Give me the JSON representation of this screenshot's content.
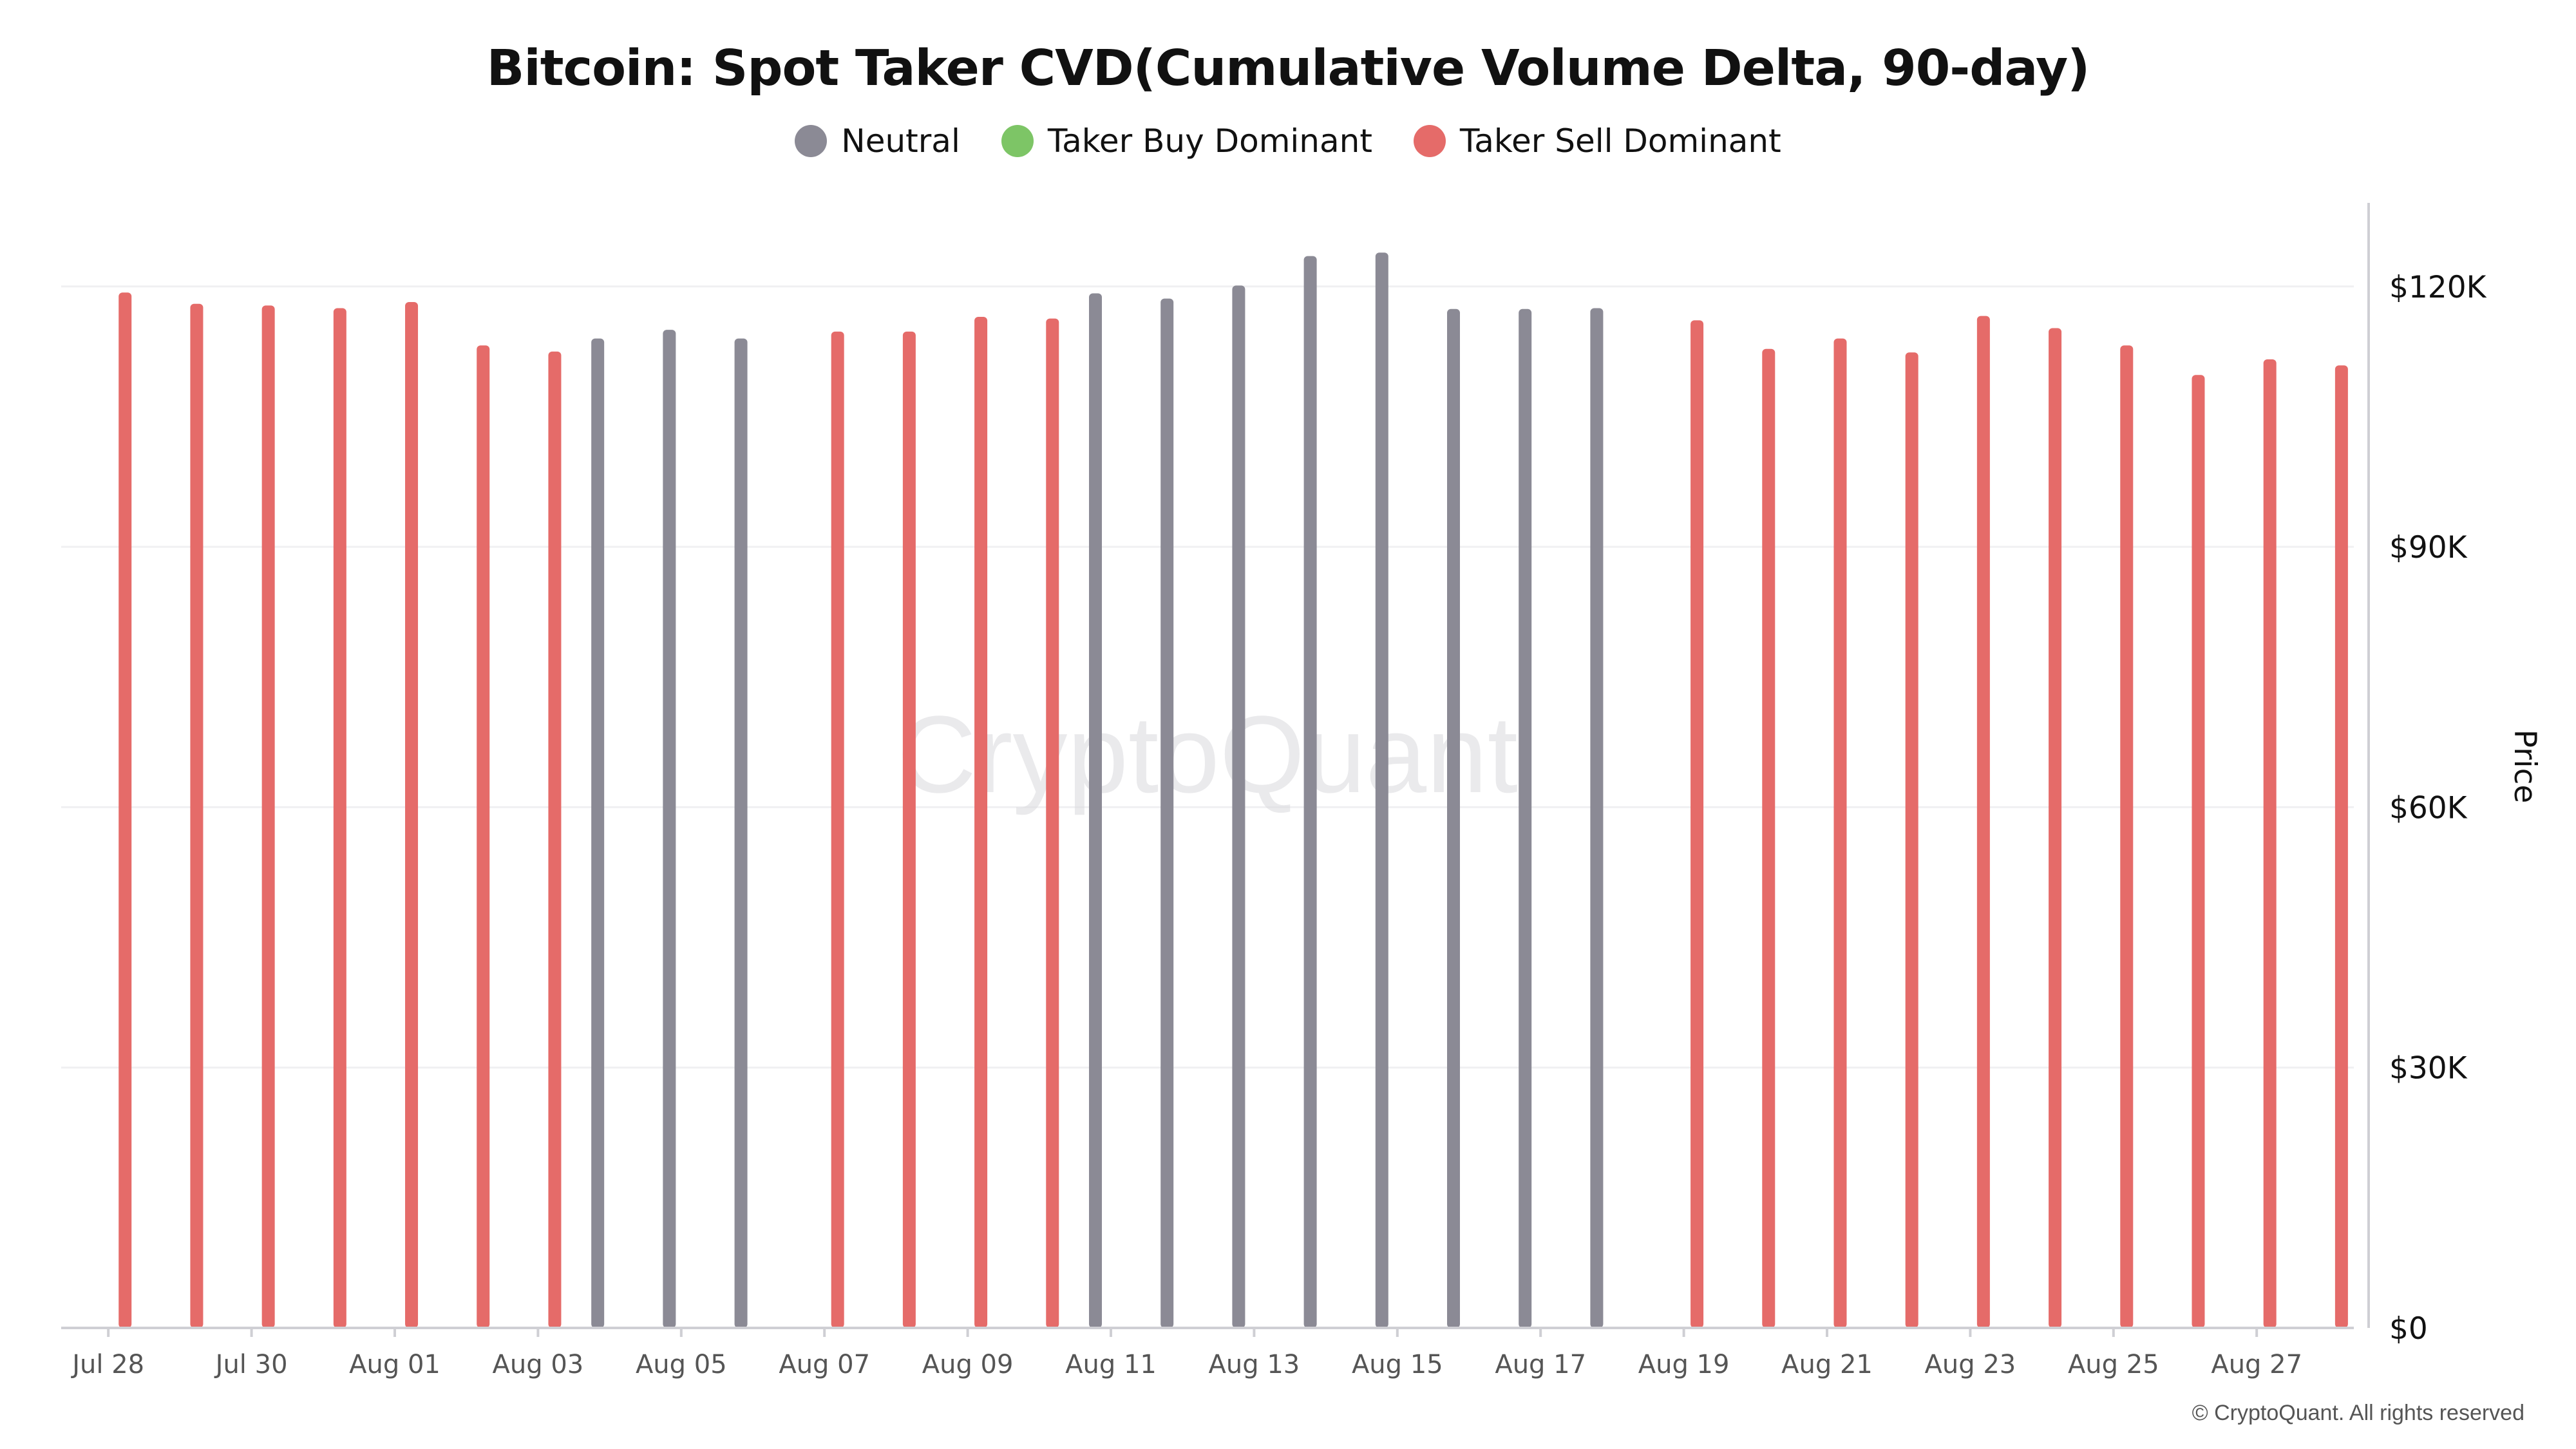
{
  "chart_data": {
    "type": "bar",
    "title": "Bitcoin: Spot Taker CVD(Cumulative Volume Delta, 90-day)",
    "legend": [
      {
        "name": "Neutral",
        "color": "#8b8a95"
      },
      {
        "name": "Taker Buy Dominant",
        "color": "#7dc566"
      },
      {
        "name": "Taker Sell Dominant",
        "color": "#e56b69"
      }
    ],
    "legend_position": "top-center",
    "y_axis": {
      "label": "Price",
      "position": "right",
      "ticks": [
        "$0",
        "$30K",
        "$60K",
        "$90K",
        "$120K"
      ],
      "tick_values": [
        0,
        30000,
        60000,
        90000,
        120000
      ],
      "ylim": [
        0,
        130000
      ]
    },
    "x_axis": {
      "ticks": [
        "Jul 28",
        "Jul 30",
        "Aug 01",
        "Aug 03",
        "Aug 05",
        "Aug 07",
        "Aug 09",
        "Aug 11",
        "Aug 13",
        "Aug 15",
        "Aug 17",
        "Aug 19",
        "Aug 21",
        "Aug 23",
        "Aug 25",
        "Aug 27"
      ]
    },
    "grid": true,
    "bars": [
      {
        "x": 0.2,
        "value": 119300,
        "status": "Taker Sell Dominant"
      },
      {
        "x": 1.2,
        "value": 118000,
        "status": "Taker Sell Dominant"
      },
      {
        "x": 2.2,
        "value": 117800,
        "status": "Taker Sell Dominant"
      },
      {
        "x": 3.2,
        "value": 117500,
        "status": "Taker Sell Dominant"
      },
      {
        "x": 4.2,
        "value": 118200,
        "status": "Taker Sell Dominant"
      },
      {
        "x": 5.2,
        "value": 113200,
        "status": "Taker Sell Dominant"
      },
      {
        "x": 6.2,
        "value": 112500,
        "status": "Taker Sell Dominant"
      },
      {
        "x": 6.8,
        "value": 114000,
        "status": "Neutral"
      },
      {
        "x": 7.8,
        "value": 115000,
        "status": "Neutral"
      },
      {
        "x": 8.8,
        "value": 114000,
        "status": "Neutral"
      },
      {
        "x": 10.15,
        "value": 114800,
        "status": "Taker Sell Dominant"
      },
      {
        "x": 11.15,
        "value": 114800,
        "status": "Taker Sell Dominant"
      },
      {
        "x": 12.15,
        "value": 116500,
        "status": "Taker Sell Dominant"
      },
      {
        "x": 13.15,
        "value": 116300,
        "status": "Taker Sell Dominant"
      },
      {
        "x": 13.75,
        "value": 119200,
        "status": "Neutral"
      },
      {
        "x": 14.75,
        "value": 118600,
        "status": "Neutral"
      },
      {
        "x": 15.75,
        "value": 120100,
        "status": "Neutral"
      },
      {
        "x": 16.75,
        "value": 123500,
        "status": "Neutral"
      },
      {
        "x": 17.75,
        "value": 123900,
        "status": "Neutral"
      },
      {
        "x": 18.75,
        "value": 117400,
        "status": "Neutral"
      },
      {
        "x": 19.75,
        "value": 117400,
        "status": "Neutral"
      },
      {
        "x": 20.75,
        "value": 117500,
        "status": "Neutral"
      },
      {
        "x": 22.15,
        "value": 116100,
        "status": "Taker Sell Dominant"
      },
      {
        "x": 23.15,
        "value": 112800,
        "status": "Taker Sell Dominant"
      },
      {
        "x": 24.15,
        "value": 114000,
        "status": "Taker Sell Dominant"
      },
      {
        "x": 25.15,
        "value": 112400,
        "status": "Taker Sell Dominant"
      },
      {
        "x": 26.15,
        "value": 116600,
        "status": "Taker Sell Dominant"
      },
      {
        "x": 27.15,
        "value": 115200,
        "status": "Taker Sell Dominant"
      },
      {
        "x": 28.15,
        "value": 113200,
        "status": "Taker Sell Dominant"
      },
      {
        "x": 29.15,
        "value": 109800,
        "status": "Taker Sell Dominant"
      },
      {
        "x": 30.15,
        "value": 111600,
        "status": "Taker Sell Dominant"
      },
      {
        "x": 31.15,
        "value": 110900,
        "status": "Taker Sell Dominant"
      }
    ]
  },
  "watermark": "CryptoQuant",
  "copyright": "© CryptoQuant. All rights reserved"
}
